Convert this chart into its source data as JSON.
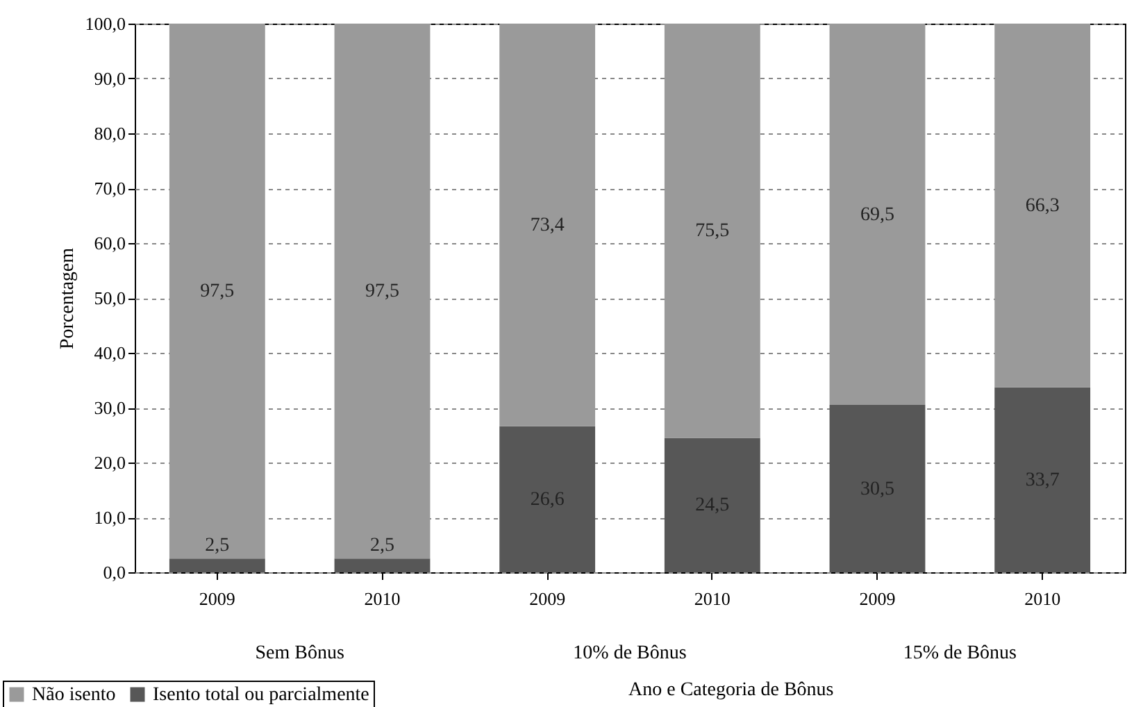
{
  "chart_data": {
    "type": "bar",
    "stacked": true,
    "categories": [
      "2009",
      "2010",
      "2009",
      "2010",
      "2009",
      "2010"
    ],
    "series": [
      {
        "name": "Isento total ou parcialmente",
        "color": "#575757",
        "values": [
          2.5,
          2.5,
          26.6,
          24.5,
          30.5,
          33.7
        ],
        "value_labels": [
          "2,5",
          "2,5",
          "26,6",
          "24,5",
          "30,5",
          "33,7"
        ]
      },
      {
        "name": "Não isento",
        "color": "#9a9a9a",
        "values": [
          97.5,
          97.5,
          73.4,
          75.5,
          69.5,
          66.3
        ],
        "value_labels": [
          "97,5",
          "97,5",
          "73,4",
          "75,5",
          "69,5",
          "66,3"
        ]
      }
    ],
    "ylabel": "Porcentagem",
    "xlabel": "Ano e Categoria de Bônus",
    "annotations": [
      "Sem Bônus",
      "10% de Bônus",
      "15% de Bônus"
    ],
    "ylim": [
      0,
      100
    ],
    "yticks": [
      {
        "value": 0,
        "label": "0,0"
      },
      {
        "value": 10,
        "label": "10,0"
      },
      {
        "value": 20,
        "label": "20,0"
      },
      {
        "value": 30,
        "label": "30,0"
      },
      {
        "value": 40,
        "label": "40,0"
      },
      {
        "value": 50,
        "label": "50,0"
      },
      {
        "value": 60,
        "label": "60,0"
      },
      {
        "value": 70,
        "label": "70,0"
      },
      {
        "value": 80,
        "label": "80,0"
      },
      {
        "value": 90,
        "label": "90,0"
      },
      {
        "value": 100,
        "label": "100,0"
      }
    ],
    "grid": "y",
    "legend": "bottom left"
  }
}
